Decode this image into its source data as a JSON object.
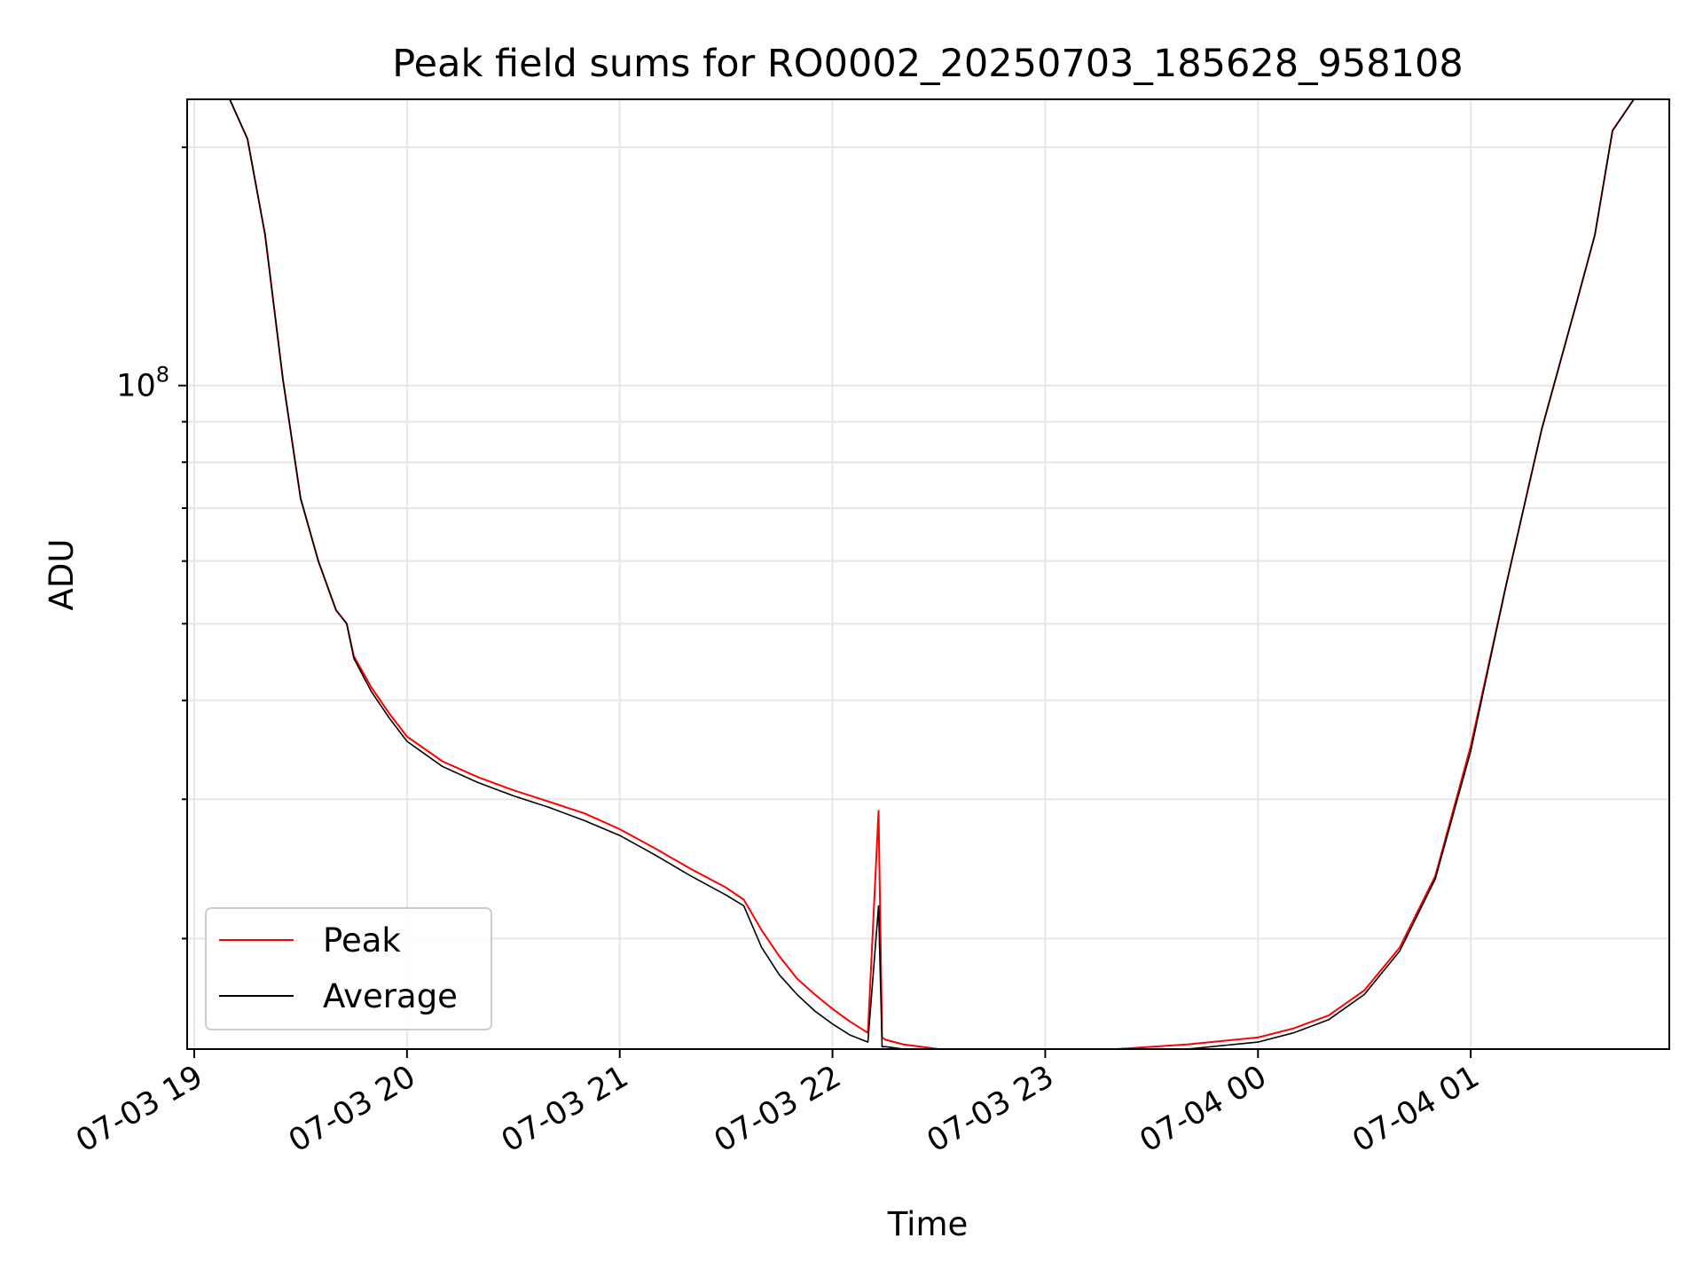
{
  "chart_data": {
    "type": "line",
    "title": "Peak field sums for RO0002_20250703_185628_958108",
    "xlabel": "Time",
    "ylabel": "ADU",
    "y_scale": "log",
    "ylim": [
      14500000.0,
      230000000.0
    ],
    "xlim": [
      "2025-07-03 18:58",
      "2025-07-04 01:56"
    ],
    "grid": true,
    "legend_position": "lower-left",
    "x_tick_labels": [
      "07-03 19",
      "07-03 20",
      "07-03 21",
      "07-03 22",
      "07-03 23",
      "07-04 00",
      "07-04 01"
    ],
    "x_ticks": [
      "2025-07-03 19:00",
      "2025-07-03 20:00",
      "2025-07-03 21:00",
      "2025-07-03 22:00",
      "2025-07-03 23:00",
      "2025-07-04 00:00",
      "2025-07-04 01:00"
    ],
    "y_tick_label": "10^8",
    "series": [
      {
        "name": "Peak",
        "color": "#ff0000",
        "x": [
          "2025-07-03 19:10",
          "2025-07-03 19:15",
          "2025-07-03 19:20",
          "2025-07-03 19:25",
          "2025-07-03 19:30",
          "2025-07-03 19:35",
          "2025-07-03 19:40",
          "2025-07-03 19:43",
          "2025-07-03 19:45",
          "2025-07-03 19:50",
          "2025-07-03 19:55",
          "2025-07-03 20:00",
          "2025-07-03 20:10",
          "2025-07-03 20:20",
          "2025-07-03 20:30",
          "2025-07-03 20:40",
          "2025-07-03 20:50",
          "2025-07-03 21:00",
          "2025-07-03 21:10",
          "2025-07-03 21:20",
          "2025-07-03 21:30",
          "2025-07-03 21:35",
          "2025-07-03 21:40",
          "2025-07-03 21:45",
          "2025-07-03 21:50",
          "2025-07-03 21:55",
          "2025-07-03 22:00",
          "2025-07-03 22:05",
          "2025-07-03 22:10",
          "2025-07-03 22:13",
          "2025-07-03 22:14",
          "2025-07-03 22:15",
          "2025-07-03 22:20",
          "2025-07-03 22:30",
          "2025-07-03 22:40",
          "2025-07-03 22:50",
          "2025-07-03 23:00",
          "2025-07-03 23:20",
          "2025-07-03 23:40",
          "2025-07-04 00:00",
          "2025-07-04 00:10",
          "2025-07-04 00:20",
          "2025-07-04 00:30",
          "2025-07-04 00:40",
          "2025-07-04 00:50",
          "2025-07-04 01:00",
          "2025-07-04 01:10",
          "2025-07-04 01:20",
          "2025-07-04 01:30",
          "2025-07-04 01:35",
          "2025-07-04 01:40",
          "2025-07-04 01:46"
        ],
        "y": [
          230000000.0,
          205000000.0,
          155000000.0,
          102000000.0,
          72000000.0,
          60000000.0,
          52000000.0,
          50000000.0,
          45500000.0,
          41500000.0,
          38500000.0,
          36000000.0,
          33500000.0,
          32000000.0,
          30800000.0,
          29800000.0,
          28800000.0,
          27500000.0,
          26000000.0,
          24500000.0,
          23200000.0,
          22400000.0,
          20500000.0,
          19000000.0,
          17800000.0,
          17000000.0,
          16300000.0,
          15700000.0,
          15200000.0,
          29000000.0,
          15000000.0,
          14900000.0,
          14700000.0,
          14400000.0,
          14300000.0,
          14300000.0,
          14400000.0,
          14500000.0,
          14700000.0,
          15000000.0,
          15400000.0,
          16000000.0,
          17200000.0,
          19500000.0,
          24000000.0,
          35000000.0,
          56000000.0,
          88000000.0,
          128000000.0,
          155000000.0,
          210000000.0,
          230000000.0
        ]
      },
      {
        "name": "Average",
        "color": "#000000",
        "x": [
          "2025-07-03 19:10",
          "2025-07-03 19:15",
          "2025-07-03 19:20",
          "2025-07-03 19:25",
          "2025-07-03 19:30",
          "2025-07-03 19:35",
          "2025-07-03 19:40",
          "2025-07-03 19:43",
          "2025-07-03 19:45",
          "2025-07-03 19:50",
          "2025-07-03 19:55",
          "2025-07-03 20:00",
          "2025-07-03 20:10",
          "2025-07-03 20:20",
          "2025-07-03 20:30",
          "2025-07-03 20:40",
          "2025-07-03 20:50",
          "2025-07-03 21:00",
          "2025-07-03 21:10",
          "2025-07-03 21:20",
          "2025-07-03 21:30",
          "2025-07-03 21:35",
          "2025-07-03 21:40",
          "2025-07-03 21:45",
          "2025-07-03 21:50",
          "2025-07-03 21:55",
          "2025-07-03 22:00",
          "2025-07-03 22:05",
          "2025-07-03 22:10",
          "2025-07-03 22:13",
          "2025-07-03 22:14",
          "2025-07-03 22:15",
          "2025-07-03 22:20",
          "2025-07-03 22:30",
          "2025-07-03 22:40",
          "2025-07-03 22:50",
          "2025-07-03 23:00",
          "2025-07-03 23:20",
          "2025-07-03 23:40",
          "2025-07-04 00:00",
          "2025-07-04 00:10",
          "2025-07-04 00:20",
          "2025-07-04 00:30",
          "2025-07-04 00:40",
          "2025-07-04 00:50",
          "2025-07-04 01:00",
          "2025-07-04 01:10",
          "2025-07-04 01:20",
          "2025-07-04 01:30",
          "2025-07-04 01:35",
          "2025-07-04 01:40",
          "2025-07-04 01:46"
        ],
        "y": [
          230000000.0,
          205000000.0,
          155000000.0,
          102000000.0,
          72000000.0,
          60000000.0,
          52000000.0,
          50000000.0,
          45200000.0,
          41000000.0,
          38000000.0,
          35500000.0,
          33000000.0,
          31500000.0,
          30300000.0,
          29300000.0,
          28200000.0,
          27000000.0,
          25500000.0,
          24000000.0,
          22700000.0,
          22000000.0,
          19500000.0,
          18000000.0,
          17000000.0,
          16200000.0,
          15600000.0,
          15100000.0,
          14800000.0,
          22000000.0,
          14600000.0,
          14600000.0,
          14400000.0,
          14200000.0,
          14100000.0,
          14100000.0,
          14200000.0,
          14300000.0,
          14500000.0,
          14800000.0,
          15200000.0,
          15800000.0,
          17000000.0,
          19300000.0,
          23800000.0,
          34500000.0,
          56000000.0,
          88000000.0,
          128000000.0,
          155000000.0,
          210000000.0,
          230000000.0
        ]
      }
    ]
  }
}
